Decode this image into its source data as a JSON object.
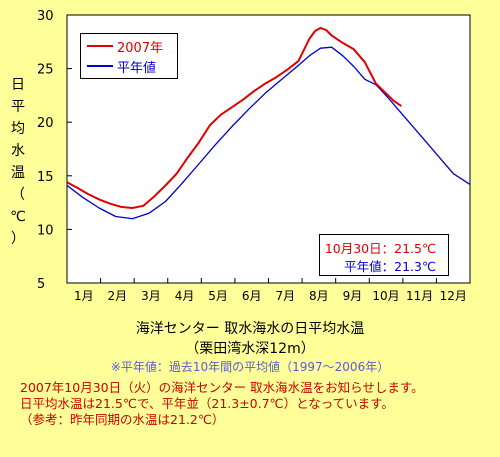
{
  "chart_data": {
    "type": "line",
    "ylabel_chars": [
      "日",
      "平",
      "均",
      "水",
      "温",
      "（",
      "℃",
      "）"
    ],
    "ylim": [
      5,
      30
    ],
    "yticks": [
      5,
      10,
      15,
      20,
      25,
      30
    ],
    "xticks": [
      "1月",
      "2月",
      "3月",
      "4月",
      "5月",
      "6月",
      "7月",
      "8月",
      "9月",
      "10月",
      "11月",
      "12月"
    ],
    "grid": false,
    "legend_position": "top-left",
    "series": [
      {
        "name": "2007年",
        "color": "#e00000",
        "x_day": [
          1,
          10,
          20,
          30,
          40,
          50,
          60,
          70,
          80,
          90,
          100,
          110,
          120,
          130,
          140,
          150,
          160,
          170,
          180,
          190,
          200,
          210,
          220,
          225,
          230,
          235,
          240,
          250,
          260,
          270,
          280,
          290,
          296,
          303
        ],
        "values": [
          14.4,
          13.9,
          13.3,
          12.8,
          12.4,
          12.1,
          12.0,
          12.2,
          13.1,
          14.1,
          15.2,
          16.7,
          18.1,
          19.7,
          20.7,
          21.4,
          22.1,
          22.9,
          23.6,
          24.2,
          24.9,
          25.7,
          27.8,
          28.5,
          28.8,
          28.6,
          28.1,
          27.4,
          26.8,
          25.6,
          23.6,
          22.6,
          22.0,
          21.5
        ]
      },
      {
        "name": "平年値",
        "color": "#0000cc",
        "x_day": [
          1,
          15,
          30,
          45,
          60,
          75,
          90,
          105,
          120,
          135,
          150,
          165,
          180,
          195,
          210,
          220,
          230,
          240,
          250,
          260,
          270,
          280,
          290,
          300,
          310,
          320,
          330,
          340,
          350,
          365
        ],
        "values": [
          14.1,
          13.0,
          12.0,
          11.2,
          11.0,
          11.5,
          12.6,
          14.3,
          16.1,
          17.9,
          19.6,
          21.2,
          22.7,
          24.0,
          25.3,
          26.2,
          26.9,
          27.0,
          26.2,
          25.2,
          24.0,
          23.5,
          22.4,
          21.2,
          20.0,
          18.8,
          17.6,
          16.4,
          15.2,
          14.2
        ]
      }
    ]
  },
  "legend": {
    "items": [
      "2007年",
      "平年値"
    ]
  },
  "info_box": {
    "line1": "10月30日：21.5℃",
    "line2": "平年値：21.3℃"
  },
  "caption": {
    "title": "海洋センター 取水海水の日平均水温",
    "subtitle": "（栗田湾水深12m）",
    "note": "※平年値：過去10年間の平均値（1997～2006年）"
  },
  "message": {
    "line1": "2007年10月30日（火）の海洋センター 取水海水温をお知らせします。",
    "line2": "日平均水温は21.5℃で、平年並（21.3±0.7℃）となっています。",
    "line3": "（参考：昨年同期の水温は21.2℃）"
  },
  "colors": {
    "background": "#ffff99",
    "plot_area": "#ffffff",
    "red": "#e00000",
    "blue": "#0000cc"
  }
}
